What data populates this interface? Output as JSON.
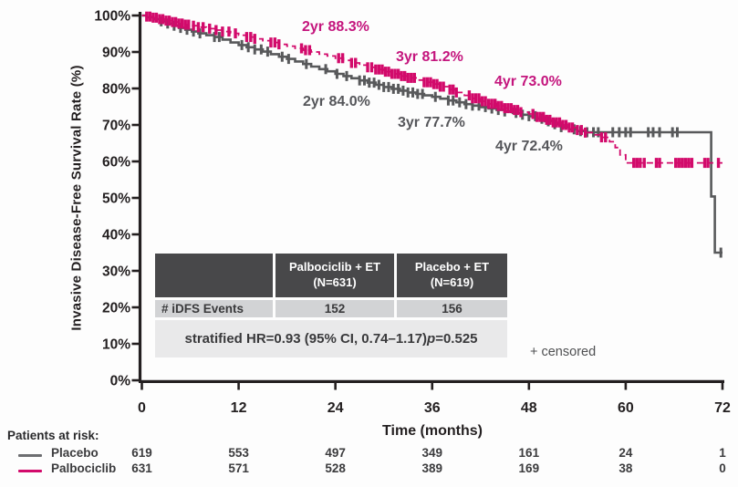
{
  "palette": {
    "palbociclib_pink": "#D20A6B",
    "pink_text": "#C4157D",
    "placebo_gray": "#58595B",
    "axis_black": "#231F20",
    "table_header_bg": "#48484A",
    "table_row_bg": "#D2D3D5",
    "table_footer_bg": "#E9E9EA"
  },
  "annotations": {
    "palbo_2yr": "2yr 88.3%",
    "palbo_3yr": "3yr 81.2%",
    "palbo_4yr": "4yr 73.0%",
    "placebo_2yr": "2yr 84.0%",
    "placebo_3yr": "3yr 77.7%",
    "placebo_4yr": "4yr 72.4%"
  },
  "table": {
    "corner": "",
    "header_palbociclib_line1": "Palbociclib + ET",
    "header_palbociclib_line2": "(N=631)",
    "header_placebo_line1": "Placebo + ET",
    "header_placebo_line2": "(N=619)",
    "events_row": {
      "label": "# iDFS Events",
      "palbociclib": "152",
      "placebo": "156"
    },
    "footer_pre": "stratified HR=0.93 (95% CI, 0.74–1.17) ",
    "footer_p": "p",
    "footer_post": "=0.525"
  },
  "censored_note": "+ censored",
  "at_risk": {
    "label": "Patients at risk:",
    "rows": [
      {
        "name": "Placebo",
        "color": "#6D6E71",
        "counts": [
          "619",
          "553",
          "497",
          "349",
          "161",
          "24",
          "1"
        ]
      },
      {
        "name": "Palbociclib",
        "color": "#D20A6B",
        "counts": [
          "631",
          "571",
          "528",
          "389",
          "169",
          "38",
          "0"
        ]
      }
    ]
  },
  "chart_data": {
    "type": "line",
    "subtype": "kaplan-meier-step",
    "title": "",
    "xlabel": "Time (months)",
    "ylabel": "Invasive Disease-Free Survival Rate (%)",
    "xlim": [
      0,
      72
    ],
    "ylim": [
      0,
      100
    ],
    "grid": false,
    "x_ticks": [
      {
        "m": 0,
        "label": "0"
      },
      {
        "m": 12,
        "label": "12"
      },
      {
        "m": 24,
        "label": "24"
      },
      {
        "m": 36,
        "label": "36"
      },
      {
        "m": 48,
        "label": "48"
      },
      {
        "m": 60,
        "label": "60"
      },
      {
        "m": 72,
        "label": "72"
      }
    ],
    "y_ticks": [
      {
        "pct": 0,
        "label": "0%"
      },
      {
        "pct": 10,
        "label": "10%"
      },
      {
        "pct": 20,
        "label": "20%"
      },
      {
        "pct": 30,
        "label": "30%"
      },
      {
        "pct": 40,
        "label": "40%"
      },
      {
        "pct": 50,
        "label": "50%"
      },
      {
        "pct": 60,
        "label": "60%"
      },
      {
        "pct": 70,
        "label": "70%"
      },
      {
        "pct": 80,
        "label": "80%"
      },
      {
        "pct": 90,
        "label": "90%"
      },
      {
        "pct": 100,
        "label": "100%"
      }
    ],
    "milestones": {
      "palbociclib": {
        "2yr": 88.3,
        "3yr": 81.2,
        "4yr": 73.0
      },
      "placebo": {
        "2yr": 84.0,
        "3yr": 77.7,
        "4yr": 72.4
      }
    },
    "series": [
      {
        "name": "Placebo",
        "color": "#58595B",
        "style": "solid",
        "points": [
          [
            0,
            100
          ],
          [
            0.6,
            99.5
          ],
          [
            1.4,
            99
          ],
          [
            2.2,
            98.4
          ],
          [
            3,
            97.8
          ],
          [
            3.8,
            97.2
          ],
          [
            4.6,
            96.6
          ],
          [
            5.4,
            96.1
          ],
          [
            6.2,
            95.6
          ],
          [
            7,
            95.1
          ],
          [
            8,
            94.6
          ],
          [
            9,
            94.1
          ],
          [
            10,
            93.4
          ],
          [
            11,
            92.6
          ],
          [
            12,
            91.9
          ],
          [
            13,
            91.3
          ],
          [
            14,
            90.7
          ],
          [
            15,
            90.1
          ],
          [
            16,
            89.4
          ],
          [
            17,
            88.7
          ],
          [
            18,
            88.1
          ],
          [
            19,
            87.4
          ],
          [
            20,
            86.7
          ],
          [
            21,
            86
          ],
          [
            22,
            85.3
          ],
          [
            23,
            84.7
          ],
          [
            24,
            84
          ],
          [
            25,
            83.4
          ],
          [
            26,
            82.8
          ],
          [
            27,
            82.2
          ],
          [
            28,
            81.6
          ],
          [
            29,
            81
          ],
          [
            30,
            80.4
          ],
          [
            31,
            79.9
          ],
          [
            32,
            79.4
          ],
          [
            33,
            78.9
          ],
          [
            34,
            78.5
          ],
          [
            35,
            78.1
          ],
          [
            36,
            77.7
          ],
          [
            37,
            77.2
          ],
          [
            38,
            76.7
          ],
          [
            39,
            76.2
          ],
          [
            40,
            75.7
          ],
          [
            41,
            75.3
          ],
          [
            42,
            74.9
          ],
          [
            43,
            74.5
          ],
          [
            44,
            74.1
          ],
          [
            45,
            73.7
          ],
          [
            46,
            73.3
          ],
          [
            47,
            72.8
          ],
          [
            48,
            72.4
          ],
          [
            49,
            71.7
          ],
          [
            50,
            71
          ],
          [
            51,
            70.2
          ],
          [
            52,
            69.4
          ],
          [
            53,
            68.8
          ],
          [
            54,
            68.3
          ],
          [
            55,
            68
          ],
          [
            70.4,
            68
          ],
          [
            70.6,
            50.4
          ],
          [
            70.95,
            50.4
          ],
          [
            71.05,
            35
          ],
          [
            72,
            35
          ]
        ],
        "censor_months": [
          2.4,
          3.2,
          4,
          4.8,
          5.6,
          6.4,
          7.2,
          9,
          9.6,
          12.4,
          13.2,
          14,
          14.8,
          15.6,
          17.4,
          18.2,
          20.4,
          22.8,
          24.2,
          25.4,
          27,
          27.6,
          28.2,
          28.8,
          29.4,
          30,
          30.6,
          31.2,
          31.8,
          32.4,
          33,
          33.6,
          34.2,
          34.8,
          36.4,
          38,
          38.6,
          39.4,
          40.2,
          41,
          41.8,
          42.6,
          43.4,
          44.2,
          45,
          46.4,
          47.2,
          48,
          48.8,
          49.6,
          50.4,
          51.2,
          52,
          53.6,
          54.4,
          55.2,
          56,
          56.6,
          58.4,
          59.2,
          60,
          60.6,
          62.8,
          63.4,
          64.2,
          65.8,
          66.4,
          71.8
        ]
      },
      {
        "name": "Palbociclib",
        "color": "#D20A6B",
        "style": "dashed",
        "points": [
          [
            0,
            100
          ],
          [
            0.6,
            99.7
          ],
          [
            1.4,
            99.4
          ],
          [
            2.2,
            99
          ],
          [
            3,
            98.6
          ],
          [
            3.8,
            98.2
          ],
          [
            4.6,
            97.8
          ],
          [
            5.4,
            97.5
          ],
          [
            6.2,
            97.2
          ],
          [
            7,
            96.8
          ],
          [
            8,
            96.4
          ],
          [
            9,
            96
          ],
          [
            10,
            95.6
          ],
          [
            11,
            95.1
          ],
          [
            12,
            94.6
          ],
          [
            13,
            94.1
          ],
          [
            14,
            93.6
          ],
          [
            15,
            93.1
          ],
          [
            16,
            92.6
          ],
          [
            17,
            92.1
          ],
          [
            18,
            91.6
          ],
          [
            19,
            91
          ],
          [
            20,
            90.5
          ],
          [
            21,
            90
          ],
          [
            22,
            89.4
          ],
          [
            23,
            88.9
          ],
          [
            24,
            88.3
          ],
          [
            25,
            87.7
          ],
          [
            26,
            87
          ],
          [
            27,
            86.4
          ],
          [
            28,
            85.8
          ],
          [
            29,
            85.2
          ],
          [
            30,
            84.6
          ],
          [
            31,
            84
          ],
          [
            32,
            83.4
          ],
          [
            33,
            82.9
          ],
          [
            34,
            82.3
          ],
          [
            35,
            81.7
          ],
          [
            36,
            81.2
          ],
          [
            37,
            80.5
          ],
          [
            38,
            79.7
          ],
          [
            39,
            78.9
          ],
          [
            40,
            78.1
          ],
          [
            41,
            77.3
          ],
          [
            42,
            76.5
          ],
          [
            43,
            75.8
          ],
          [
            44,
            75.2
          ],
          [
            45,
            74.6
          ],
          [
            46,
            74.1
          ],
          [
            47,
            73.5
          ],
          [
            48,
            73
          ],
          [
            49,
            72.2
          ],
          [
            50,
            71.4
          ],
          [
            51,
            70.7
          ],
          [
            52,
            70
          ],
          [
            53,
            69.3
          ],
          [
            54,
            68.6
          ],
          [
            55,
            67.9
          ],
          [
            56,
            67.3
          ],
          [
            57,
            66.6
          ],
          [
            58,
            65.4
          ],
          [
            58.7,
            63.8
          ],
          [
            59.3,
            61.8
          ],
          [
            60,
            59.6
          ],
          [
            72,
            59.6
          ]
        ],
        "censor_months": [
          0.6,
          1,
          1.4,
          1.8,
          2.2,
          2.6,
          3,
          3.4,
          3.8,
          4.2,
          4.6,
          5,
          5.4,
          5.8,
          6.4,
          7,
          7.6,
          8.4,
          9.2,
          10,
          10.8,
          11.6,
          13,
          13.5,
          14,
          16,
          16.5,
          17,
          19.8,
          20.3,
          20.8,
          24.4,
          24.9,
          26,
          26.5,
          28,
          28.5,
          29,
          29.4,
          29.8,
          30.2,
          30.6,
          31,
          31.4,
          31.8,
          32.2,
          32.6,
          33,
          33.4,
          33.8,
          35,
          35.4,
          35.8,
          36.2,
          36.6,
          37,
          37.4,
          38.2,
          38.6,
          39,
          40.6,
          41,
          41.4,
          41.8,
          42.2,
          42.6,
          43,
          43.4,
          43.8,
          44.2,
          44.6,
          45,
          45.4,
          45.8,
          46.2,
          46.6,
          47,
          48.5,
          49,
          49.4,
          49.8,
          50.2,
          50.6,
          51,
          51.4,
          51.8,
          52.2,
          52.6,
          53,
          53.4,
          54,
          54.5,
          55,
          57,
          57.5,
          61,
          61.4,
          61.8,
          62.3,
          63.8,
          64.2,
          66.2,
          66.6,
          67,
          67.4,
          67.8,
          68.2,
          69.8,
          70.2,
          71.5
        ]
      }
    ]
  }
}
